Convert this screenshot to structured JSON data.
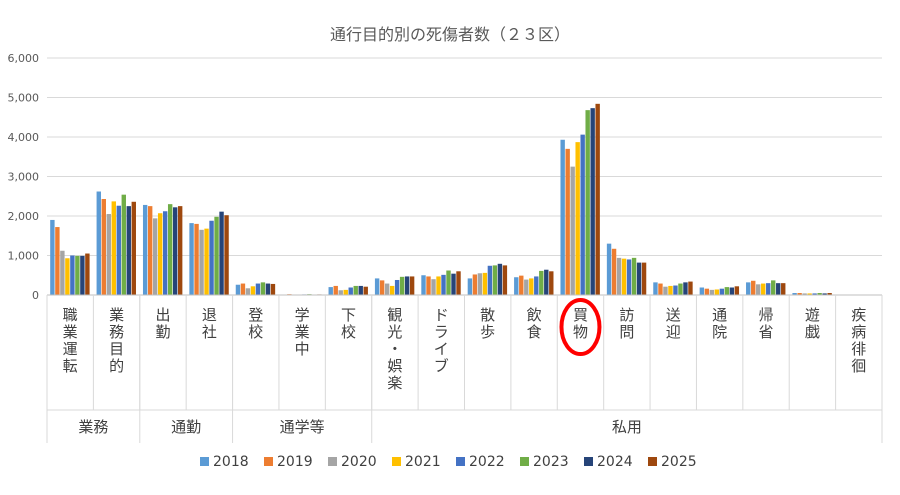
{
  "chart_data": {
    "type": "bar",
    "title": "通行目的別の死傷者数（２３区）",
    "xlabel": "",
    "ylabel": "",
    "ylim": [
      0,
      6000
    ],
    "yticks": [
      "0",
      "1,000",
      "2,000",
      "3,000",
      "4,000",
      "5,000",
      "6,000"
    ],
    "grid": true,
    "legend_position": "bottom",
    "highlighted_category": "買物",
    "categories": [
      "職業運転",
      "業務目的",
      "出勤",
      "退社",
      "登校",
      "学業中",
      "下校",
      "観光・娯楽",
      "ドライブ",
      "散歩",
      "飲食",
      "買物",
      "訪問",
      "送迎",
      "通院",
      "帰省",
      "遊戯",
      "疾病徘徊"
    ],
    "groups": [
      {
        "label": "業務",
        "count": 2
      },
      {
        "label": "通勤",
        "count": 2
      },
      {
        "label": "通学等",
        "count": 3
      },
      {
        "label": "私用",
        "count": 11
      }
    ],
    "series": [
      {
        "name": "2018",
        "color": "#5b9bd5",
        "values": [
          1900,
          2620,
          2280,
          1820,
          260,
          10,
          200,
          420,
          500,
          420,
          450,
          3930,
          1300,
          320,
          190,
          320,
          50,
          5
        ]
      },
      {
        "name": "2019",
        "color": "#ed7d31",
        "values": [
          1720,
          2430,
          2250,
          1800,
          290,
          20,
          230,
          370,
          470,
          520,
          490,
          3700,
          1170,
          290,
          160,
          360,
          50,
          5
        ]
      },
      {
        "name": "2020",
        "color": "#a5a5a5",
        "values": [
          1120,
          2050,
          1940,
          1650,
          170,
          10,
          120,
          290,
          400,
          550,
          390,
          3250,
          940,
          210,
          130,
          270,
          40,
          5
        ]
      },
      {
        "name": "2021",
        "color": "#ffc000",
        "values": [
          930,
          2370,
          2070,
          1680,
          220,
          10,
          130,
          230,
          470,
          560,
          420,
          3870,
          920,
          230,
          140,
          290,
          40,
          5
        ]
      },
      {
        "name": "2022",
        "color": "#4472c4",
        "values": [
          1000,
          2260,
          2120,
          1880,
          290,
          15,
          190,
          380,
          510,
          740,
          470,
          4060,
          900,
          240,
          160,
          300,
          40,
          5
        ]
      },
      {
        "name": "2023",
        "color": "#70ad47",
        "values": [
          990,
          2540,
          2300,
          1980,
          320,
          20,
          230,
          460,
          620,
          750,
          610,
          4680,
          940,
          290,
          200,
          370,
          50,
          5
        ]
      },
      {
        "name": "2024",
        "color": "#264478",
        "values": [
          990,
          2250,
          2220,
          2110,
          290,
          10,
          230,
          470,
          540,
          790,
          640,
          4730,
          820,
          320,
          190,
          300,
          40,
          5
        ]
      },
      {
        "name": "2025",
        "color": "#9e480e",
        "values": [
          1050,
          2360,
          2250,
          2020,
          280,
          15,
          210,
          470,
          600,
          750,
          600,
          4840,
          820,
          340,
          220,
          300,
          50,
          5
        ]
      }
    ]
  }
}
